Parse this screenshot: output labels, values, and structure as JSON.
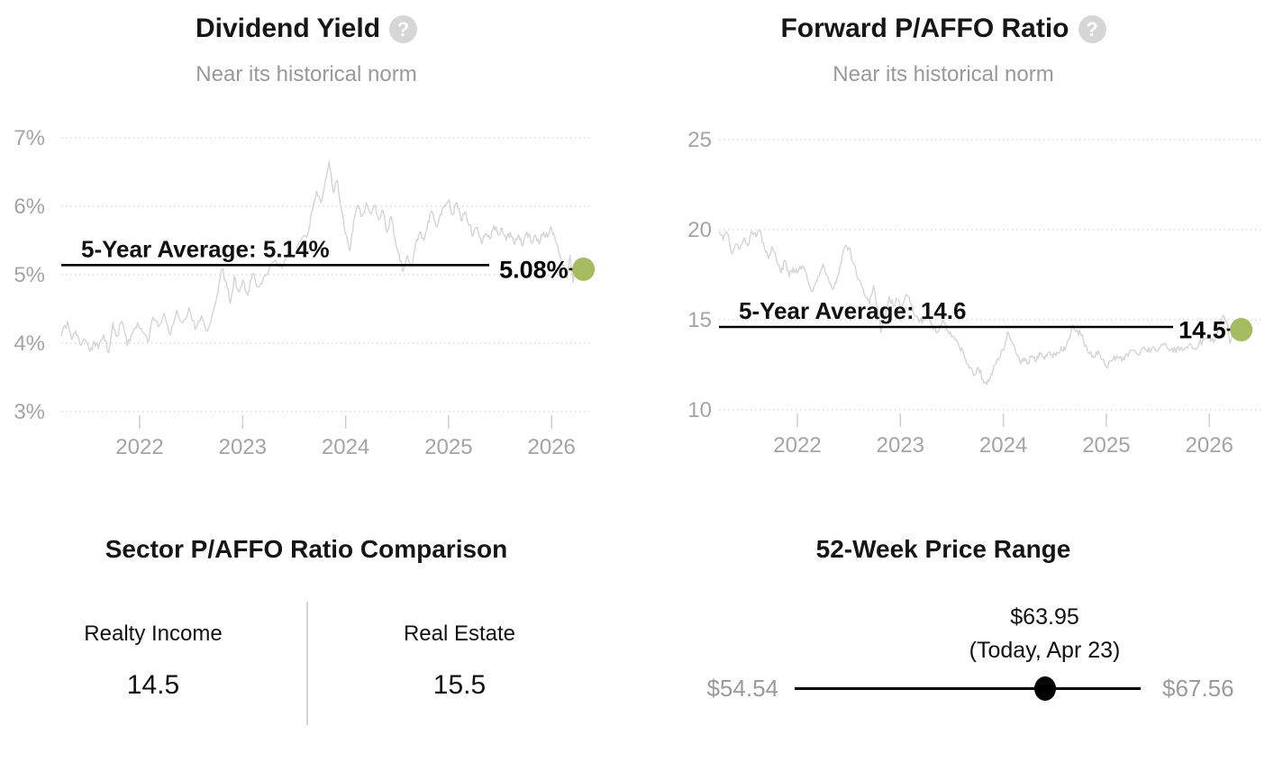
{
  "accent_color": "#a6bb60",
  "series_color": "#d5d5d5",
  "chart_data": [
    {
      "type": "line",
      "title": "Dividend Yield",
      "help_icon": "?",
      "subtitle": "Near its historical norm",
      "ylim": [
        3,
        7
      ],
      "xlim": [
        2021.24,
        2026.31
      ],
      "grid": "dotted-horizontal",
      "legend": "none",
      "y_ticks": [
        {
          "value": 3,
          "label": "3%"
        },
        {
          "value": 4,
          "label": "4%"
        },
        {
          "value": 5,
          "label": "5%"
        },
        {
          "value": 6,
          "label": "6%"
        },
        {
          "value": 7,
          "label": "7%"
        }
      ],
      "x_ticks": [
        {
          "value": 2022,
          "label": "2022"
        },
        {
          "value": 2023,
          "label": "2023"
        },
        {
          "value": 2024,
          "label": "2024"
        },
        {
          "value": 2025,
          "label": "2025"
        },
        {
          "value": 2026,
          "label": "2026"
        }
      ],
      "average": {
        "label": "5-Year Average: 5.14%",
        "value": 5.14
      },
      "current": {
        "label": "5.08%",
        "value": 5.08
      },
      "series": [
        {
          "name": "Dividend Yield %",
          "points": [
            [
              2021.24,
              4.1
            ],
            [
              2021.3,
              4.32
            ],
            [
              2021.34,
              4.05
            ],
            [
              2021.38,
              4.18
            ],
            [
              2021.42,
              3.98
            ],
            [
              2021.47,
              4.05
            ],
            [
              2021.52,
              3.88
            ],
            [
              2021.56,
              4.02
            ],
            [
              2021.6,
              3.92
            ],
            [
              2021.65,
              4.12
            ],
            [
              2021.7,
              3.86
            ],
            [
              2021.74,
              4.3
            ],
            [
              2021.78,
              4.1
            ],
            [
              2021.83,
              4.32
            ],
            [
              2021.88,
              3.96
            ],
            [
              2021.93,
              4.15
            ],
            [
              2021.98,
              4.3
            ],
            [
              2022.03,
              4.16
            ],
            [
              2022.08,
              4.02
            ],
            [
              2022.13,
              4.38
            ],
            [
              2022.18,
              4.24
            ],
            [
              2022.24,
              4.44
            ],
            [
              2022.3,
              4.12
            ],
            [
              2022.36,
              4.48
            ],
            [
              2022.42,
              4.3
            ],
            [
              2022.48,
              4.52
            ],
            [
              2022.54,
              4.2
            ],
            [
              2022.6,
              4.4
            ],
            [
              2022.66,
              4.18
            ],
            [
              2022.72,
              4.5
            ],
            [
              2022.76,
              4.75
            ],
            [
              2022.8,
              5.08
            ],
            [
              2022.84,
              4.9
            ],
            [
              2022.88,
              4.58
            ],
            [
              2022.92,
              4.98
            ],
            [
              2022.96,
              4.75
            ],
            [
              2023.0,
              4.92
            ],
            [
              2023.05,
              4.7
            ],
            [
              2023.1,
              5.02
            ],
            [
              2023.15,
              4.82
            ],
            [
              2023.2,
              4.95
            ],
            [
              2023.26,
              5.1
            ],
            [
              2023.32,
              5.22
            ],
            [
              2023.38,
              5.1
            ],
            [
              2023.44,
              5.32
            ],
            [
              2023.5,
              5.25
            ],
            [
              2023.56,
              5.48
            ],
            [
              2023.62,
              5.55
            ],
            [
              2023.68,
              5.95
            ],
            [
              2023.72,
              6.22
            ],
            [
              2023.76,
              6.05
            ],
            [
              2023.8,
              6.35
            ],
            [
              2023.84,
              6.65
            ],
            [
              2023.88,
              6.2
            ],
            [
              2023.92,
              6.38
            ],
            [
              2023.96,
              5.95
            ],
            [
              2024.0,
              5.6
            ],
            [
              2024.04,
              5.35
            ],
            [
              2024.08,
              5.8
            ],
            [
              2024.12,
              6.02
            ],
            [
              2024.16,
              5.85
            ],
            [
              2024.2,
              6.05
            ],
            [
              2024.24,
              5.9
            ],
            [
              2024.28,
              6.02
            ],
            [
              2024.32,
              5.8
            ],
            [
              2024.36,
              5.95
            ],
            [
              2024.4,
              5.62
            ],
            [
              2024.44,
              5.85
            ],
            [
              2024.48,
              5.52
            ],
            [
              2024.52,
              5.3
            ],
            [
              2024.56,
              5.05
            ],
            [
              2024.6,
              5.28
            ],
            [
              2024.64,
              5.12
            ],
            [
              2024.68,
              5.45
            ],
            [
              2024.72,
              5.62
            ],
            [
              2024.76,
              5.5
            ],
            [
              2024.8,
              5.78
            ],
            [
              2024.84,
              5.92
            ],
            [
              2024.88,
              5.7
            ],
            [
              2024.92,
              5.88
            ],
            [
              2024.96,
              6.02
            ],
            [
              2025.0,
              6.1
            ],
            [
              2025.04,
              5.88
            ],
            [
              2025.08,
              6.05
            ],
            [
              2025.12,
              5.8
            ],
            [
              2025.16,
              5.92
            ],
            [
              2025.2,
              5.72
            ],
            [
              2025.24,
              5.58
            ],
            [
              2025.28,
              5.7
            ],
            [
              2025.32,
              5.45
            ],
            [
              2025.36,
              5.6
            ],
            [
              2025.4,
              5.52
            ],
            [
              2025.44,
              5.72
            ],
            [
              2025.48,
              5.58
            ],
            [
              2025.52,
              5.68
            ],
            [
              2025.56,
              5.5
            ],
            [
              2025.6,
              5.62
            ],
            [
              2025.64,
              5.44
            ],
            [
              2025.68,
              5.58
            ],
            [
              2025.72,
              5.42
            ],
            [
              2025.76,
              5.62
            ],
            [
              2025.8,
              5.48
            ],
            [
              2025.84,
              5.58
            ],
            [
              2025.88,
              5.45
            ],
            [
              2025.92,
              5.62
            ],
            [
              2025.96,
              5.55
            ],
            [
              2026.0,
              5.68
            ],
            [
              2026.04,
              5.48
            ],
            [
              2026.08,
              5.3
            ],
            [
              2026.12,
              5.12
            ],
            [
              2026.15,
              4.95
            ],
            [
              2026.18,
              5.28
            ],
            [
              2026.21,
              4.88
            ],
            [
              2026.24,
              5.22
            ],
            [
              2026.27,
              4.95
            ],
            [
              2026.31,
              5.08
            ]
          ]
        }
      ]
    },
    {
      "type": "line",
      "title": "Forward P/AFFO Ratio",
      "help_icon": "?",
      "subtitle": "Near its historical norm",
      "ylim": [
        10,
        25
      ],
      "xlim": [
        2021.24,
        2026.31
      ],
      "grid": "dotted-horizontal",
      "legend": "none",
      "y_ticks": [
        {
          "value": 10,
          "label": "10"
        },
        {
          "value": 15,
          "label": "15"
        },
        {
          "value": 20,
          "label": "20"
        },
        {
          "value": 25,
          "label": "25"
        }
      ],
      "x_ticks": [
        {
          "value": 2022,
          "label": "2022"
        },
        {
          "value": 2023,
          "label": "2023"
        },
        {
          "value": 2024,
          "label": "2024"
        },
        {
          "value": 2025,
          "label": "2025"
        },
        {
          "value": 2026,
          "label": "2026"
        }
      ],
      "average": {
        "label": "5-Year Average: 14.6",
        "value": 14.6
      },
      "current": {
        "label": "14.5",
        "value": 14.5
      },
      "series": [
        {
          "name": "Forward P/AFFO",
          "points": [
            [
              2021.24,
              19.9
            ],
            [
              2021.28,
              19.4
            ],
            [
              2021.32,
              19.8
            ],
            [
              2021.36,
              18.7
            ],
            [
              2021.4,
              19.2
            ],
            [
              2021.44,
              18.9
            ],
            [
              2021.48,
              19.5
            ],
            [
              2021.52,
              19.1
            ],
            [
              2021.56,
              19.9
            ],
            [
              2021.6,
              19.6
            ],
            [
              2021.64,
              19.9
            ],
            [
              2021.68,
              19.0
            ],
            [
              2021.72,
              18.4
            ],
            [
              2021.76,
              19.0
            ],
            [
              2021.8,
              18.2
            ],
            [
              2021.84,
              17.6
            ],
            [
              2021.88,
              18.3
            ],
            [
              2021.92,
              17.4
            ],
            [
              2021.96,
              17.9
            ],
            [
              2022.0,
              17.6
            ],
            [
              2022.05,
              18.0
            ],
            [
              2022.1,
              17.2
            ],
            [
              2022.15,
              16.6
            ],
            [
              2022.2,
              17.4
            ],
            [
              2022.25,
              18.1
            ],
            [
              2022.3,
              17.3
            ],
            [
              2022.35,
              16.7
            ],
            [
              2022.4,
              17.5
            ],
            [
              2022.45,
              18.9
            ],
            [
              2022.5,
              19.0
            ],
            [
              2022.55,
              18.1
            ],
            [
              2022.6,
              17.2
            ],
            [
              2022.65,
              16.4
            ],
            [
              2022.7,
              15.9
            ],
            [
              2022.74,
              16.9
            ],
            [
              2022.78,
              15.6
            ],
            [
              2022.81,
              14.3
            ],
            [
              2022.85,
              15.2
            ],
            [
              2022.89,
              16.3
            ],
            [
              2022.93,
              15.8
            ],
            [
              2022.97,
              16.1
            ],
            [
              2023.01,
              15.5
            ],
            [
              2023.06,
              16.4
            ],
            [
              2023.11,
              15.8
            ],
            [
              2023.16,
              15.2
            ],
            [
              2023.21,
              14.8
            ],
            [
              2023.26,
              15.3
            ],
            [
              2023.31,
              14.7
            ],
            [
              2023.36,
              14.3
            ],
            [
              2023.41,
              15.0
            ],
            [
              2023.46,
              14.4
            ],
            [
              2023.51,
              14.1
            ],
            [
              2023.56,
              13.7
            ],
            [
              2023.61,
              13.2
            ],
            [
              2023.66,
              12.5
            ],
            [
              2023.71,
              11.9
            ],
            [
              2023.76,
              12.3
            ],
            [
              2023.8,
              11.7
            ],
            [
              2023.84,
              11.4
            ],
            [
              2023.88,
              12.0
            ],
            [
              2023.92,
              12.5
            ],
            [
              2023.96,
              12.9
            ],
            [
              2024.0,
              13.3
            ],
            [
              2024.04,
              14.3
            ],
            [
              2024.08,
              13.8
            ],
            [
              2024.12,
              13.2
            ],
            [
              2024.16,
              12.7
            ],
            [
              2024.2,
              12.9
            ],
            [
              2024.24,
              12.6
            ],
            [
              2024.28,
              13.0
            ],
            [
              2024.32,
              12.7
            ],
            [
              2024.36,
              13.1
            ],
            [
              2024.4,
              12.8
            ],
            [
              2024.44,
              13.2
            ],
            [
              2024.48,
              12.9
            ],
            [
              2024.52,
              13.2
            ],
            [
              2024.56,
              13.5
            ],
            [
              2024.6,
              13.3
            ],
            [
              2024.64,
              13.9
            ],
            [
              2024.68,
              14.7
            ],
            [
              2024.72,
              14.4
            ],
            [
              2024.76,
              14.1
            ],
            [
              2024.8,
              13.6
            ],
            [
              2024.84,
              13.1
            ],
            [
              2024.88,
              12.9
            ],
            [
              2024.92,
              13.3
            ],
            [
              2024.96,
              12.8
            ],
            [
              2025.0,
              12.4
            ],
            [
              2025.05,
              12.7
            ],
            [
              2025.1,
              13.0
            ],
            [
              2025.15,
              12.7
            ],
            [
              2025.2,
              13.1
            ],
            [
              2025.25,
              13.3
            ],
            [
              2025.3,
              13.1
            ],
            [
              2025.35,
              13.4
            ],
            [
              2025.4,
              13.2
            ],
            [
              2025.45,
              13.5
            ],
            [
              2025.5,
              13.3
            ],
            [
              2025.55,
              13.6
            ],
            [
              2025.6,
              13.4
            ],
            [
              2025.65,
              13.2
            ],
            [
              2025.7,
              13.5
            ],
            [
              2025.75,
              13.3
            ],
            [
              2025.8,
              13.6
            ],
            [
              2025.85,
              13.4
            ],
            [
              2025.9,
              13.7
            ],
            [
              2025.95,
              13.9
            ],
            [
              2026.0,
              14.1
            ],
            [
              2026.04,
              13.7
            ],
            [
              2026.08,
              14.3
            ],
            [
              2026.13,
              15.2
            ],
            [
              2026.17,
              14.9
            ],
            [
              2026.2,
              13.7
            ],
            [
              2026.24,
              14.2
            ],
            [
              2026.28,
              14.0
            ],
            [
              2026.31,
              14.45
            ]
          ]
        }
      ]
    },
    {
      "type": "table",
      "title": "Sector P/AFFO Ratio Comparison",
      "columns": [
        {
          "label": "Realty Income",
          "value": "14.5"
        },
        {
          "label": "Real Estate",
          "value": "15.5"
        }
      ]
    },
    {
      "type": "range",
      "title": "52-Week Price Range",
      "min": 54.54,
      "max": 67.56,
      "current": 63.95,
      "min_label": "$54.54",
      "max_label": "$67.56",
      "current_label": "$63.95",
      "current_sublabel": "(Today, Apr 23)"
    }
  ]
}
